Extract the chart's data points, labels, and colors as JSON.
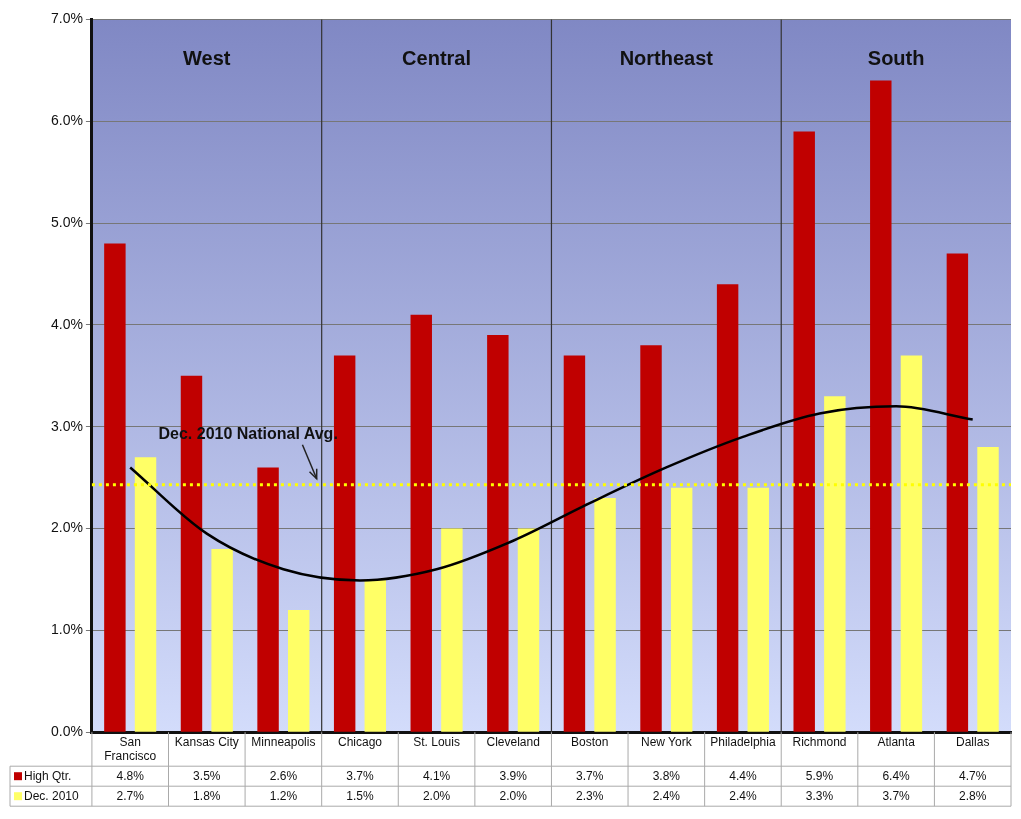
{
  "chart_data": {
    "type": "bar",
    "categories": [
      "San Francisco",
      "Kansas City",
      "Minneapolis",
      "Chicago",
      "St. Louis",
      "Cleveland",
      "Boston",
      "New York",
      "Philadelphia",
      "Richmond",
      "Atlanta",
      "Dallas"
    ],
    "series": [
      {
        "name": "High Qtr.",
        "color": "#c00000",
        "values": [
          4.8,
          3.5,
          2.6,
          3.7,
          4.1,
          3.9,
          3.7,
          3.8,
          4.4,
          5.9,
          6.4,
          4.7
        ],
        "value_labels": [
          "4.8%",
          "3.5%",
          "2.6%",
          "3.7%",
          "4.1%",
          "3.9%",
          "3.7%",
          "3.8%",
          "4.4%",
          "5.9%",
          "6.4%",
          "4.7%"
        ]
      },
      {
        "name": "Dec. 2010",
        "color": "#ffff66",
        "values": [
          2.7,
          1.8,
          1.2,
          1.5,
          2.0,
          2.0,
          2.3,
          2.4,
          2.4,
          3.3,
          3.7,
          2.8
        ],
        "value_labels": [
          "2.7%",
          "1.8%",
          "1.2%",
          "1.5%",
          "2.0%",
          "2.0%",
          "2.3%",
          "2.4%",
          "2.4%",
          "3.3%",
          "3.7%",
          "2.8%"
        ]
      },
      {
        "type": "line",
        "color": "#000000",
        "values": [
          2.6,
          1.95,
          1.6,
          1.49,
          1.6,
          1.88,
          2.25,
          2.6,
          2.9,
          3.13,
          3.2,
          3.07
        ]
      }
    ],
    "ylim": [
      0,
      7
    ],
    "yticks": [
      {
        "value": 0,
        "label": "0.0%"
      },
      {
        "value": 1,
        "label": "1.0%"
      },
      {
        "value": 2,
        "label": "2.0%"
      },
      {
        "value": 3,
        "label": "3.0%"
      },
      {
        "value": 4,
        "label": "4.0%"
      },
      {
        "value": 5,
        "label": "5.0%"
      },
      {
        "value": 6,
        "label": "6.0%"
      },
      {
        "value": 7,
        "label": "7.0%"
      }
    ],
    "grid": "y",
    "legend": "bottom left",
    "marker": "none",
    "ref_lines": [
      {
        "axis": "y",
        "value": 2.43,
        "label": "Dec. 2010 National Avg.",
        "color": "#ffff00",
        "line_style": "dotted"
      }
    ],
    "annotations": [
      "West",
      "Central",
      "Northeast",
      "South"
    ]
  }
}
